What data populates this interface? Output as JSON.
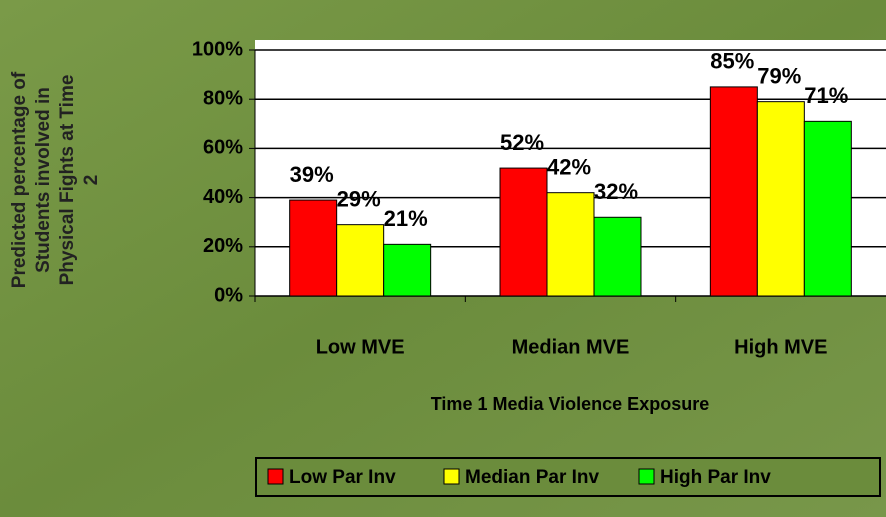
{
  "chart_data": {
    "type": "bar",
    "ylabel_lines": [
      "Predicted percentage of",
      "Students involved in",
      "Physical Fights at Time",
      "2"
    ],
    "xlabel": "Time 1 Media Violence Exposure",
    "categories": [
      "Low MVE",
      "Median MVE",
      "High MVE"
    ],
    "series": [
      {
        "name": "Low Par Inv",
        "color": "#ff0000",
        "values": [
          39,
          52,
          85
        ],
        "value_labels": [
          "39%",
          "52%",
          "85%"
        ]
      },
      {
        "name": "Median Par Inv",
        "color": "#ffff00",
        "values": [
          29,
          42,
          79
        ],
        "value_labels": [
          "29%",
          "42%",
          "79%"
        ]
      },
      {
        "name": "High Par Inv",
        "color": "#00ff00",
        "values": [
          21,
          32,
          71
        ],
        "value_labels": [
          "21%",
          "32%",
          "71%"
        ]
      }
    ],
    "ylim": [
      0,
      100
    ],
    "yticks": [
      {
        "value": 0,
        "label": "0%"
      },
      {
        "value": 20,
        "label": "20%"
      },
      {
        "value": 40,
        "label": "40%"
      },
      {
        "value": 60,
        "label": "60%"
      },
      {
        "value": 80,
        "label": "80%"
      },
      {
        "value": 100,
        "label": "100%"
      }
    ],
    "grid": true,
    "legend": "bottom"
  }
}
